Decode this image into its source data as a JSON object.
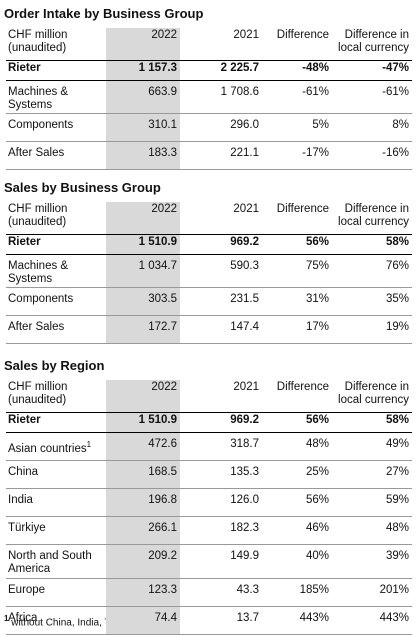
{
  "tables": [
    {
      "title": "Order Intake by Business Group",
      "header": [
        "CHF million (unaudited)",
        "2022",
        "2021",
        "Difference",
        "Difference in local currency"
      ],
      "rows": [
        {
          "label": "Rieter",
          "cells": [
            "1 157.3",
            "2 225.7",
            "-48%",
            "-47%"
          ]
        },
        {
          "label": "Machines & Systems",
          "cells": [
            "663.9",
            "1 708.6",
            "-61%",
            "-61%"
          ]
        },
        {
          "label": "Components",
          "cells": [
            "310.1",
            "296.0",
            "5%",
            "8%"
          ]
        },
        {
          "label": "After Sales",
          "cells": [
            "183.3",
            "221.1",
            "-17%",
            "-16%"
          ]
        }
      ]
    },
    {
      "title": "Sales by Business Group",
      "header": [
        "CHF million (unaudited)",
        "2022",
        "2021",
        "Difference",
        "Difference in local currency"
      ],
      "rows": [
        {
          "label": "Rieter",
          "cells": [
            "1 510.9",
            "969.2",
            "56%",
            "58%"
          ]
        },
        {
          "label": "Machines & Systems",
          "cells": [
            "1 034.7",
            "590.3",
            "75%",
            "76%"
          ]
        },
        {
          "label": "Components",
          "cells": [
            "303.5",
            "231.5",
            "31%",
            "35%"
          ]
        },
        {
          "label": "After Sales",
          "cells": [
            "172.7",
            "147.4",
            "17%",
            "19%"
          ]
        }
      ]
    },
    {
      "title": "Sales by Region",
      "header": [
        "CHF million (unaudited)",
        "2022",
        "2021",
        "Difference",
        "Difference in local currency"
      ],
      "rows": [
        {
          "label": "Rieter",
          "cells": [
            "1 510.9",
            "969.2",
            "56%",
            "58%"
          ]
        },
        {
          "label": "Asian countries",
          "sup": "1",
          "cells": [
            "472.6",
            "318.7",
            "48%",
            "49%"
          ]
        },
        {
          "label": "China",
          "cells": [
            "168.5",
            "135.3",
            "25%",
            "27%"
          ]
        },
        {
          "label": "India",
          "cells": [
            "196.8",
            "126.0",
            "56%",
            "59%"
          ]
        },
        {
          "label": "Türkiye",
          "cells": [
            "266.1",
            "182.3",
            "46%",
            "48%"
          ]
        },
        {
          "label": "North and South America",
          "cells": [
            "209.2",
            "149.9",
            "40%",
            "39%"
          ]
        },
        {
          "label": "Europe",
          "cells": [
            "123.3",
            "43.3",
            "185%",
            "201%"
          ]
        },
        {
          "label": "Africa",
          "cells": [
            "74.4",
            "13.7",
            "443%",
            "443%"
          ]
        }
      ]
    }
  ],
  "footnote": {
    "marker": "1",
    "text": "without China, India, Türkiye"
  }
}
